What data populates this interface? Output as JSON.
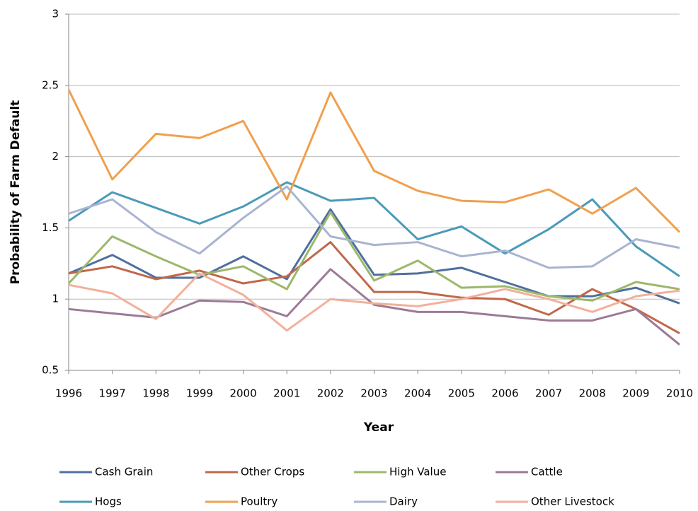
{
  "chart_data": {
    "type": "line",
    "x_label": "Year",
    "y_label": "Probability of Farm Default",
    "categories": [
      "1996",
      "1997",
      "1998",
      "1999",
      "2000",
      "2001",
      "2002",
      "2003",
      "2004",
      "2005",
      "2006",
      "2007",
      "2008",
      "2009",
      "2010"
    ],
    "series": [
      {
        "name": "Cash Grain",
        "color": "#4f6f9e",
        "values": [
          1.18,
          1.31,
          1.15,
          1.15,
          1.3,
          1.14,
          1.63,
          1.17,
          1.18,
          1.22,
          1.12,
          1.02,
          1.02,
          1.08,
          0.97
        ]
      },
      {
        "name": "Other Crops",
        "color": "#c0674a",
        "values": [
          1.18,
          1.23,
          1.14,
          1.2,
          1.11,
          1.16,
          1.4,
          1.05,
          1.05,
          1.01,
          1.0,
          0.89,
          1.07,
          0.93,
          0.76
        ]
      },
      {
        "name": "High Value",
        "color": "#9cb86b",
        "values": [
          1.11,
          1.44,
          1.3,
          1.17,
          1.23,
          1.07,
          1.61,
          1.13,
          1.27,
          1.08,
          1.09,
          1.02,
          0.99,
          1.12,
          1.07
        ]
      },
      {
        "name": "Cattle",
        "color": "#9c7a96",
        "values": [
          0.93,
          0.9,
          0.87,
          0.99,
          0.98,
          0.88,
          1.21,
          0.96,
          0.91,
          0.91,
          0.88,
          0.85,
          0.85,
          0.93,
          0.68
        ]
      },
      {
        "name": "Hogs",
        "color": "#4a9ab8",
        "values": [
          1.55,
          1.75,
          1.64,
          1.53,
          1.65,
          1.82,
          1.69,
          1.71,
          1.42,
          1.51,
          1.32,
          1.49,
          1.7,
          1.37,
          1.16
        ]
      },
      {
        "name": "Poultry",
        "color": "#f0a04d",
        "values": [
          2.47,
          1.84,
          2.16,
          2.13,
          2.25,
          1.7,
          2.45,
          1.9,
          1.76,
          1.69,
          1.68,
          1.77,
          1.6,
          1.78,
          1.47
        ]
      },
      {
        "name": "Dairy",
        "color": "#a8b4d0",
        "values": [
          1.6,
          1.7,
          1.47,
          1.32,
          1.57,
          1.79,
          1.44,
          1.38,
          1.4,
          1.3,
          1.34,
          1.22,
          1.23,
          1.42,
          1.36
        ]
      },
      {
        "name": "Other Livestock",
        "color": "#f2b09b",
        "values": [
          1.1,
          1.04,
          0.86,
          1.18,
          1.03,
          0.78,
          1.0,
          0.97,
          0.95,
          1.0,
          1.07,
          1.0,
          0.91,
          1.02,
          1.06
        ]
      }
    ],
    "ylim": [
      0.5,
      3
    ],
    "yticks": [
      0.5,
      1,
      1.5,
      2,
      2.5,
      3
    ],
    "grid": true,
    "legend": "bottom"
  }
}
